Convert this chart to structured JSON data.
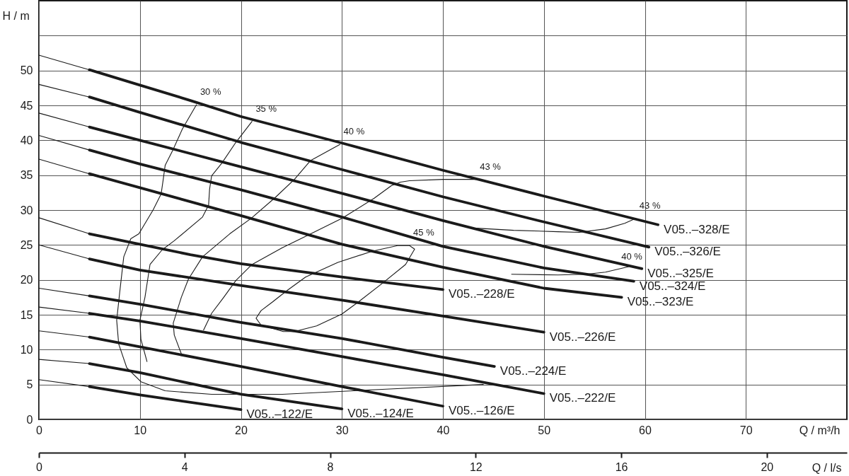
{
  "chart_data": {
    "type": "line",
    "xlabel": "Q / m³/h",
    "ylabel": "H / m",
    "x2label": "Q / l/s",
    "xlim": [
      0,
      80
    ],
    "xticks": [
      0,
      10,
      20,
      30,
      40,
      50,
      60,
      70
    ],
    "x2lim": [
      0,
      22.2
    ],
    "x2ticks": [
      0,
      4,
      8,
      12,
      16,
      20
    ],
    "ylim": [
      0,
      60
    ],
    "yticks": [
      0,
      5,
      10,
      15,
      20,
      25,
      30,
      35,
      40,
      45,
      50,
      {
        "value": 55,
        "label": null
      }
    ],
    "grid": true,
    "series": [
      {
        "color": "#1a1a1a",
        "x": [
          0,
          5
        ],
        "values": [
          52.2,
          50.1
        ]
      },
      {
        "name": "V05..–328/E",
        "color": "#1a1a1a",
        "x": [
          5,
          10,
          15,
          20,
          30,
          40,
          50,
          61.3
        ],
        "values": [
          50.1,
          47.9,
          45.7,
          43.4,
          39.6,
          35.7,
          32.0,
          27.9
        ]
      },
      {
        "color": "#1a1a1a",
        "x": [
          0,
          5
        ],
        "values": [
          48.0,
          46.2
        ]
      },
      {
        "name": "V05..–326/E",
        "color": "#1a1a1a",
        "x": [
          5,
          10,
          20,
          30,
          40,
          50,
          60.4
        ],
        "values": [
          46.2,
          44.0,
          39.7,
          35.8,
          31.9,
          28.3,
          24.7
        ]
      },
      {
        "color": "#1a1a1a",
        "x": [
          0,
          5
        ],
        "values": [
          43.9,
          41.9
        ]
      },
      {
        "name": "V05..–325/E",
        "color": "#1a1a1a",
        "x": [
          5,
          10,
          20,
          30,
          40,
          50,
          59.7
        ],
        "values": [
          41.9,
          40.0,
          36.2,
          32.4,
          28.5,
          24.8,
          21.6
        ]
      },
      {
        "color": "#1a1a1a",
        "x": [
          0,
          5
        ],
        "values": [
          40.7,
          38.6
        ]
      },
      {
        "name": "V05..–324/E",
        "color": "#1a1a1a",
        "x": [
          5,
          10,
          20,
          30,
          40,
          50,
          58.9
        ],
        "values": [
          38.6,
          36.6,
          32.9,
          29.0,
          24.8,
          21.7,
          19.8
        ]
      },
      {
        "color": "#1a1a1a",
        "x": [
          0,
          5
        ],
        "values": [
          37.3,
          35.2
        ]
      },
      {
        "name": "V05..–323/E",
        "color": "#1a1a1a",
        "x": [
          5,
          10,
          20,
          30,
          40,
          50,
          57.7
        ],
        "values": [
          35.2,
          33.2,
          29.2,
          25.1,
          21.8,
          18.8,
          17.5
        ]
      },
      {
        "color": "#1a1a1a",
        "x": [
          0,
          5
        ],
        "values": [
          28.9,
          26.6
        ]
      },
      {
        "name": "V05..–228/E",
        "color": "#1a1a1a",
        "x": [
          5,
          10,
          15,
          20,
          30,
          40
        ],
        "values": [
          26.6,
          25.1,
          23.6,
          22.3,
          20.4,
          18.6
        ]
      },
      {
        "color": "#1a1a1a",
        "x": [
          0,
          5
        ],
        "values": [
          25.0,
          23.0
        ]
      },
      {
        "name": "V05..–226/E",
        "color": "#1a1a1a",
        "x": [
          5,
          10,
          20,
          30,
          40,
          50
        ],
        "values": [
          23.0,
          21.4,
          19.2,
          17.1,
          14.8,
          12.5
        ]
      },
      {
        "color": "#1a1a1a",
        "x": [
          0,
          5
        ],
        "values": [
          18.8,
          17.7
        ]
      },
      {
        "name": "V05..–224/E",
        "color": "#1a1a1a",
        "x": [
          5,
          10,
          20,
          30,
          40,
          45.1
        ],
        "values": [
          17.7,
          16.5,
          13.9,
          11.6,
          8.9,
          7.6
        ]
      },
      {
        "color": "#1a1a1a",
        "x": [
          0,
          5
        ],
        "values": [
          16.1,
          15.2
        ]
      },
      {
        "name": "V05..–222/E",
        "color": "#1a1a1a",
        "x": [
          5,
          10,
          20,
          30,
          40,
          50
        ],
        "values": [
          15.2,
          14.1,
          11.6,
          9.0,
          6.4,
          3.7
        ]
      },
      {
        "color": "#1a1a1a",
        "x": [
          0,
          5
        ],
        "values": [
          12.7,
          11.8
        ]
      },
      {
        "name": "V05..–126/E",
        "color": "#1a1a1a",
        "x": [
          5,
          10,
          20,
          30,
          40
        ],
        "values": [
          11.8,
          10.4,
          7.6,
          4.7,
          1.9
        ]
      },
      {
        "color": "#1a1a1a",
        "x": [
          0,
          5
        ],
        "values": [
          8.6,
          8.0
        ]
      },
      {
        "name": "V05..–124/E",
        "color": "#1a1a1a",
        "x": [
          5,
          10,
          20,
          30
        ],
        "values": [
          8.0,
          6.7,
          3.6,
          1.5
        ]
      },
      {
        "color": "#1a1a1a",
        "x": [
          0,
          5
        ],
        "values": [
          5.7,
          4.7
        ]
      },
      {
        "name": "V05..–122/E",
        "color": "#1a1a1a",
        "x": [
          5,
          10,
          20
        ],
        "values": [
          4.7,
          3.5,
          1.4
        ]
      },
      {
        "color": "#1a1a1a",
        "x": [
          15.6,
          14.2,
          13.2,
          12.5,
          12.3,
          12.1,
          11.3,
          9.9,
          9.1,
          8.4,
          8.0,
          7.7,
          7.9,
          8.7,
          10.1,
          12.5,
          17.1,
          24.1,
          34,
          44.0
        ],
        "values": [
          45.1,
          41.6,
          38.4,
          36.4,
          34.3,
          32.3,
          30.0,
          26.6,
          25.9,
          23.3,
          18.2,
          14.2,
          10.8,
          7.4,
          5.4,
          4.1,
          3.6,
          3.6,
          4.3,
          5.0
        ]
      },
      {
        "color": "#1a1a1a",
        "x": [
          21.1,
          19.5,
          18.1,
          17.1,
          16.9,
          16.8,
          16.2,
          13.4,
          12.2,
          11.0,
          10.5,
          10.0,
          10.1,
          10.7
        ],
        "values": [
          42.7,
          39.7,
          36.7,
          34.9,
          33.0,
          30.7,
          29.0,
          25.6,
          24.3,
          22.2,
          17.5,
          14.2,
          11.5,
          8.3
        ]
      },
      {
        "color": "#1a1a1a",
        "x": [
          29.8,
          26.9,
          25.3,
          23.4,
          21.0,
          18.9,
          16.2,
          14.8,
          14.1,
          13.3,
          13.4,
          14.1
        ],
        "values": [
          39.4,
          37.1,
          34.4,
          31.8,
          28.8,
          26.6,
          23.3,
          20.1,
          17.5,
          13.8,
          12.1,
          9.4
        ]
      },
      {
        "color": "#1a1a1a",
        "x": [
          43.3,
          40,
          36.7,
          35.8,
          34.9,
          33.2,
          30.0,
          26.5,
          24.1,
          21.1,
          19.5,
          18.3,
          17.1,
          16.3
        ],
        "values": [
          34.4,
          34.4,
          34.2,
          34.0,
          33.5,
          31.7,
          28.8,
          26.3,
          24.6,
          22.2,
          19.9,
          17.5,
          15.2,
          12.8
        ]
      },
      {
        "color": "#1a1a1a",
        "x": [
          35.5,
          36.7,
          37.2,
          36.3,
          34.0,
          31.6,
          30.0,
          27.5,
          25.3,
          24.2,
          22.0,
          21.5,
          22.0,
          23.1,
          24.5,
          26.4,
          29.6,
          33.0,
          35.5,
          36.7
        ],
        "values": [
          24.9,
          24.9,
          24.4,
          22.2,
          19.5,
          16.8,
          15.1,
          13.4,
          12.6,
          12.6,
          13.5,
          14.5,
          15.6,
          16.8,
          18.4,
          20.4,
          22.5,
          24.1,
          24.9,
          24.9
        ]
      },
      {
        "color": "#1a1a1a",
        "x": [
          43.3,
          47,
          51.4,
          53.5,
          56.1,
          58.0,
          59.1
        ],
        "values": [
          27.4,
          27.1,
          26.9,
          26.8,
          27.3,
          28.1,
          28.8
        ]
      },
      {
        "color": "#1a1a1a",
        "x": [
          46.8,
          51.4,
          54.2,
          56.1,
          58.4
        ],
        "values": [
          20.8,
          20.7,
          20.8,
          21.1,
          21.9
        ]
      }
    ],
    "annotations": [
      {
        "text": "30 %",
        "x": 15.6,
        "y": 45.1
      },
      {
        "text": "35 %",
        "x": 21.1,
        "y": 42.7
      },
      {
        "text": "40 %",
        "x": 29.8,
        "y": 39.4
      },
      {
        "text": "43 %",
        "x": 43.3,
        "y": 34.4
      },
      {
        "text": "45 %",
        "x": 36.7,
        "y": 24.9
      },
      {
        "text": "43 %",
        "x": 59.1,
        "y": 28.8
      },
      {
        "text": "40 %",
        "x": 57.3,
        "y": 21.5
      }
    ]
  }
}
